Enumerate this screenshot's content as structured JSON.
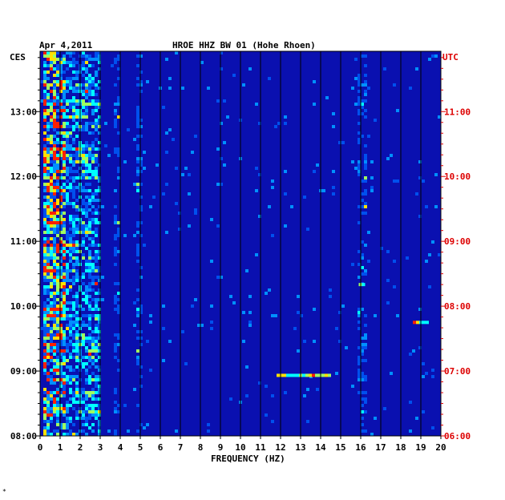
{
  "chart_data": {
    "type": "heatmap",
    "date": "Apr 4,2011",
    "title": "HROE HHZ BW 01 (Hohe Rhoen)",
    "left_zone": "CES",
    "right_zone": "UTC",
    "xlabel": "FREQUENCY (HZ)",
    "xlim": [
      0,
      20
    ],
    "x_ticks": [
      "0",
      "1",
      "2",
      "3",
      "4",
      "5",
      "6",
      "7",
      "8",
      "9",
      "10",
      "11",
      "12",
      "13",
      "14",
      "15",
      "16",
      "17",
      "18",
      "19",
      "20"
    ],
    "ylim_hours_cest": [
      8.0,
      13.93
    ],
    "y_ticks_left": [
      "13:00",
      "12:00",
      "11:00",
      "10:00",
      "09:00",
      "08:00"
    ],
    "y_ticks_right": [
      "11:00",
      "10:00",
      "09:00",
      "08:00",
      "07:00",
      "06:00"
    ],
    "y_tick_hours_cest": [
      13,
      12,
      11,
      10,
      9,
      8
    ],
    "grid": "vertical lines at every 1 Hz",
    "colors": {
      "background": "#0a10b0",
      "grid": "#000000",
      "left_axis": "#000000",
      "right_axis": "#dd0000"
    },
    "energy_bands_hz": [
      {
        "from": 0.1,
        "to": 1.2,
        "level": "very high"
      },
      {
        "from": 1.2,
        "to": 3.0,
        "level": "high"
      },
      {
        "from": 3.6,
        "to": 3.9,
        "level": "moderate"
      },
      {
        "from": 4.8,
        "to": 5.1,
        "level": "moderate"
      },
      {
        "from": 15.7,
        "to": 16.3,
        "level": "moderate"
      }
    ],
    "notable_features": [
      {
        "freq_hz": [
          11.8,
          14.4
        ],
        "time_cest": "08:56",
        "description": "horizontal burst"
      },
      {
        "freq_hz": [
          15.9,
          16.2
        ],
        "time_cest": "10:20",
        "description": "bright line"
      },
      {
        "freq_hz": [
          18.6,
          19.4
        ],
        "time_cest": "09:45",
        "description": "short burst"
      }
    ]
  },
  "footer_mark": "*"
}
